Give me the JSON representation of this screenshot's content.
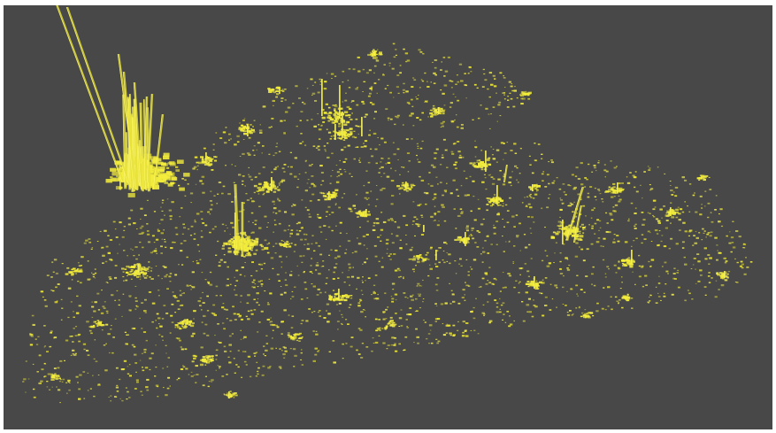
{
  "scene": {
    "background_color": "#484848",
    "point_color": "#f2ec3c",
    "bar_color": "#e8e23a",
    "bar_highlight_color": "#fffa78"
  }
}
